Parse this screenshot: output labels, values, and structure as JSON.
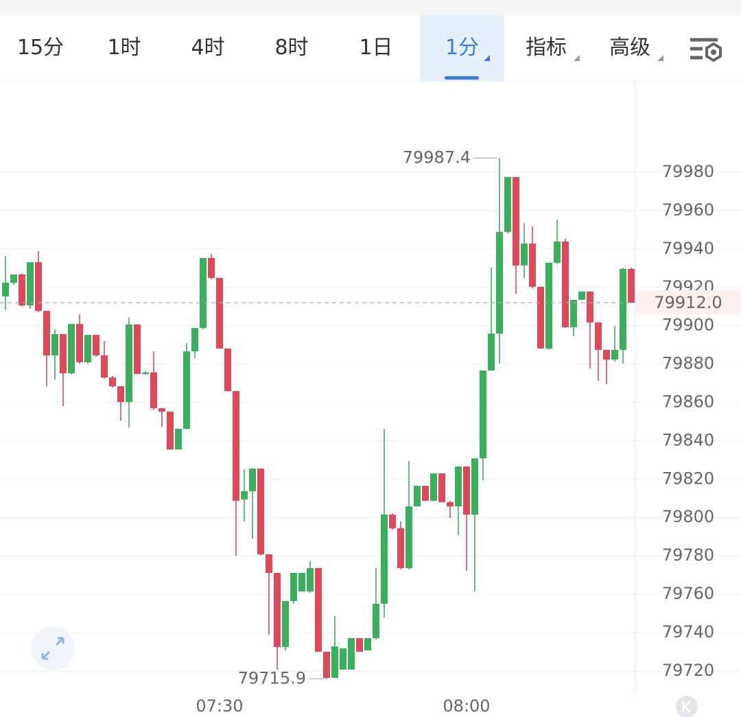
{
  "tabs": [
    "15分",
    "1时",
    "4时",
    "8时",
    "1日",
    "1分",
    "指标",
    "高级"
  ],
  "chart_data": {
    "type": "candlestick",
    "categories": [
      null,
      null,
      null,
      null,
      null,
      null,
      null,
      null,
      null,
      null,
      null,
      null,
      null,
      null,
      null,
      null,
      null,
      null,
      null,
      null,
      null,
      null,
      null,
      null,
      null,
      null,
      "07:30",
      null,
      null,
      null,
      null,
      null,
      null,
      null,
      null,
      null,
      null,
      null,
      null,
      null,
      null,
      null,
      null,
      null,
      null,
      null,
      null,
      null,
      null,
      null,
      null,
      null,
      null,
      null,
      null,
      null,
      "08:00",
      null,
      null,
      null,
      null,
      null,
      null,
      null,
      null,
      null,
      null,
      null,
      null,
      null,
      null,
      null,
      null,
      null,
      null,
      null,
      null
    ],
    "open": [
      79915.3,
      79922.4,
      79926.7,
      79910.6,
      79933.1,
      79907.7,
      79884.5,
      79895.6,
      79875.2,
      79900.9,
      79880.9,
      79895.2,
      79884.5,
      79873.0,
      79868.4,
      79860.2,
      79900.6,
      79874.8,
      79875.6,
      79857.0,
      79855.2,
      79835.5,
      79846.2,
      79886.6,
      79898.8,
      79935.3,
      79924.9,
      79888.1,
      79865.9,
      79809.4,
      79813.7,
      79825.5,
      79780.8,
      79771.1,
      79732.5,
      79756.4,
      79761.4,
      79761.4,
      79773.6,
      79730.0,
      79716.4,
      79720.7,
      79720.7,
      79737.1,
      79730.7,
      79737.1,
      79755.0,
      79801.5,
      79794.4,
      79773.6,
      79805.8,
      79816.5,
      79808.7,
      79823.0,
      79808.0,
      79805.8,
      79826.6,
      79801.5,
      79830.8,
      79876.6,
      79895.9,
      79948.9,
      79977.5,
      79931.4,
      79942.8,
      79920.3,
      79888.1,
      79932.8,
      79943.9,
      79899.2,
      79913.5,
      79917.8,
      79901.7,
      79887.4,
      79882.3,
      79887.4,
      79929.6
    ],
    "high": [
      79936.4,
      79926.7,
      79927.4,
      79933.1,
      79938.9,
      79907.7,
      79898.1,
      79895.6,
      79900.9,
      79906.0,
      79895.2,
      79895.2,
      79892.0,
      79873.8,
      79868.4,
      79904.2,
      79900.6,
      79876.3,
      79886.6,
      79857.0,
      79855.2,
      79846.2,
      79890.9,
      79898.8,
      79935.3,
      79937.4,
      79924.9,
      79888.1,
      79865.9,
      79825.1,
      79825.5,
      79825.5,
      79780.8,
      79771.1,
      79756.4,
      79771.1,
      79771.1,
      79777.2,
      79773.6,
      79730.0,
      79748.6,
      79731.8,
      79737.1,
      79737.1,
      79737.1,
      79773.6,
      79846.2,
      79802.2,
      79797.9,
      79829.4,
      79816.5,
      79816.5,
      79823.0,
      79823.0,
      79808.7,
      79826.6,
      79826.6,
      79830.8,
      79876.6,
      79930.3,
      79987.4,
      79977.5,
      79977.5,
      79953.5,
      79951.7,
      79920.3,
      79932.8,
      79955.3,
      79945.3,
      79913.5,
      79917.8,
      79917.8,
      79901.7,
      79887.4,
      79899.9,
      79930.3,
      79930.3
    ],
    "low": [
      79908.1,
      79921.3,
      79909.9,
      79908.8,
      79907.0,
      79868.4,
      79872.0,
      79858.0,
      79874.5,
      79880.2,
      79880.2,
      79883.8,
      79872.3,
      79867.7,
      79850.5,
      79846.9,
      79874.8,
      79874.5,
      79856.2,
      79847.3,
      79835.5,
      79835.5,
      79845.9,
      79883.1,
      79898.1,
      79924.2,
      79888.1,
      79865.9,
      79780.1,
      79797.9,
      79789.0,
      79780.1,
      79738.9,
      79720.7,
      79730.7,
      79755.0,
      79761.4,
      79760.7,
      79730.0,
      79715.9,
      79716.4,
      79720.7,
      79720.7,
      79730.0,
      79730.7,
      79736.4,
      79747.9,
      79793.6,
      79772.9,
      79772.9,
      79805.8,
      79808.7,
      79808.7,
      79808.0,
      79799.7,
      79790.8,
      79772.2,
      79761.4,
      79819.4,
      79876.6,
      79880.2,
      79948.2,
      79916.7,
      79924.9,
      79919.5,
      79888.1,
      79887.4,
      79932.1,
      79898.8,
      79894.5,
      79913.5,
      79877.7,
      79871.3,
      79869.5,
      79881.3,
      79880.2,
      79912.0
    ],
    "close": [
      79922.4,
      79926.7,
      79910.6,
      79933.1,
      79907.7,
      79884.5,
      79895.6,
      79875.2,
      79900.9,
      79880.9,
      79895.2,
      79884.5,
      79873.0,
      79868.4,
      79860.2,
      79900.6,
      79874.8,
      79875.6,
      79857.0,
      79855.2,
      79835.5,
      79846.2,
      79886.6,
      79898.8,
      79935.3,
      79924.9,
      79888.1,
      79865.9,
      79808.7,
      79813.7,
      79825.5,
      79780.8,
      79771.1,
      79732.5,
      79756.4,
      79771.1,
      79771.1,
      79773.6,
      79730.0,
      79716.4,
      79732.8,
      79731.8,
      79737.1,
      79730.0,
      79737.1,
      79755.0,
      79801.5,
      79794.4,
      79773.6,
      79805.8,
      79816.5,
      79808.7,
      79823.0,
      79808.0,
      79805.8,
      79826.6,
      79801.5,
      79830.8,
      79876.6,
      79895.9,
      79948.9,
      79977.5,
      79931.4,
      79942.8,
      79920.3,
      79888.1,
      79932.8,
      79943.9,
      79899.2,
      79913.5,
      79917.8,
      79901.7,
      79887.4,
      79882.3,
      79887.4,
      79929.6,
      79912.0
    ],
    "up_color": "#3bb05c",
    "down_color": "#e0485a",
    "ylim": [
      79708.5,
      80027.6
    ],
    "yticks": [
      79720,
      79740,
      79760,
      79780,
      79800,
      79820,
      79840,
      79860,
      79880,
      79900,
      79920,
      79940,
      79960,
      79980
    ],
    "grid": true,
    "high_label": 79987.4,
    "low_label": 79715.9,
    "last_price": {
      "value": 79912,
      "label": "79912.0"
    }
  }
}
